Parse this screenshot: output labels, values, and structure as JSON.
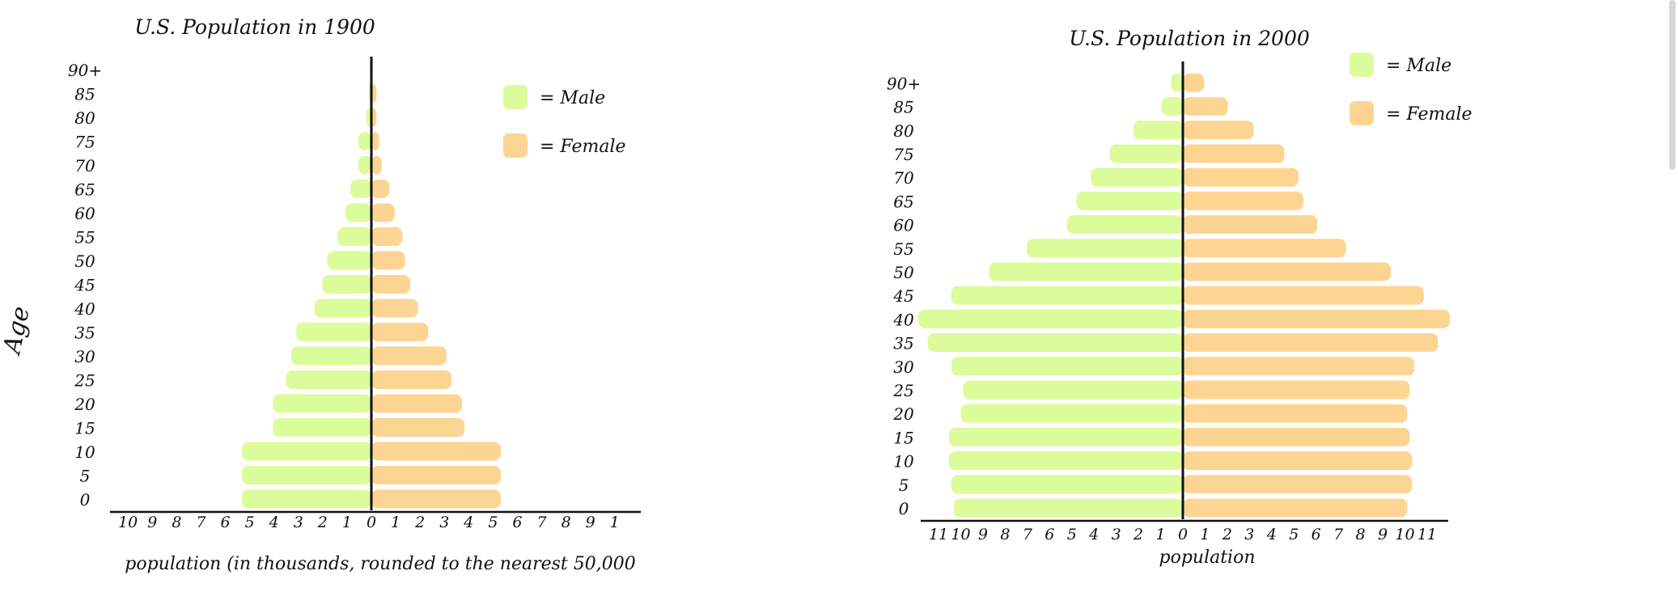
{
  "colors": {
    "male": "#dcfb9a",
    "female": "#fdd592",
    "axis": "#111111"
  },
  "chart_data": [
    {
      "type": "bar",
      "orientation": "population-pyramid",
      "title": "U.S. Population in 1900",
      "xlabel": "population (in thousands, rounded to the nearest 50,000",
      "ylabel": "Age",
      "categories": [
        "0",
        "5",
        "10",
        "15",
        "20",
        "25",
        "30",
        "35",
        "40",
        "45",
        "50",
        "55",
        "60",
        "65",
        "70",
        "75",
        "80",
        "85",
        "90+"
      ],
      "x_tick_labels_left": [
        "10",
        "9",
        "8",
        "7",
        "6",
        "5",
        "4",
        "3",
        "2",
        "1"
      ],
      "x_tick_labels_right": [
        "0",
        "1",
        "2",
        "3",
        "4",
        "5",
        "6",
        "7",
        "8",
        "9",
        "1"
      ],
      "xlim": [
        -10,
        10
      ],
      "legend": {
        "entries": [
          "= Male",
          "= Female"
        ],
        "placement": "top-right"
      },
      "series": [
        {
          "name": "Male",
          "values": [
            5,
            5,
            5,
            3.8,
            3.8,
            3.3,
            3.1,
            2.9,
            2.2,
            1.9,
            1.7,
            1.3,
            1,
            0.8,
            0.5,
            0.5,
            0.2,
            0.1,
            0.05
          ]
        },
        {
          "name": "Female",
          "values": [
            5,
            5,
            5,
            3.6,
            3.5,
            3.1,
            2.9,
            2.2,
            1.8,
            1.5,
            1.3,
            1.2,
            0.9,
            0.7,
            0.4,
            0.3,
            0.2,
            0.2,
            0.05
          ]
        }
      ]
    },
    {
      "type": "bar",
      "orientation": "population-pyramid",
      "title": "U.S. Population in 2000",
      "xlabel": "population",
      "ylabel": "",
      "categories": [
        "0",
        "5",
        "10",
        "15",
        "20",
        "25",
        "30",
        "35",
        "40",
        "45",
        "50",
        "55",
        "60",
        "65",
        "70",
        "75",
        "80",
        "85",
        "90+"
      ],
      "x_tick_labels_left": [
        "11",
        "10",
        "9",
        "8",
        "7",
        "6",
        "5",
        "4",
        "3",
        "2",
        "1"
      ],
      "x_tick_labels_right": [
        "0",
        "1",
        "2",
        "3",
        "4",
        "5",
        "6",
        "7",
        "8",
        "9",
        "10",
        "11"
      ],
      "xlim": [
        -11,
        11
      ],
      "legend": {
        "entries": [
          "= Male",
          "= Female"
        ],
        "placement": "top-right"
      },
      "series": [
        {
          "name": "Male",
          "values": [
            9.7,
            9.8,
            9.9,
            9.9,
            9.4,
            9.3,
            9.8,
            10.8,
            11.2,
            9.8,
            8.2,
            6.6,
            4.9,
            4.5,
            3.9,
            3.1,
            2.1,
            0.9,
            0.5
          ]
        },
        {
          "name": "Female",
          "values": [
            9.5,
            9.7,
            9.7,
            9.6,
            9.5,
            9.6,
            9.8,
            10.8,
            11.3,
            10.2,
            8.8,
            6.9,
            5.7,
            5.1,
            4.9,
            4.3,
            3,
            1.9,
            0.9
          ]
        }
      ]
    }
  ]
}
